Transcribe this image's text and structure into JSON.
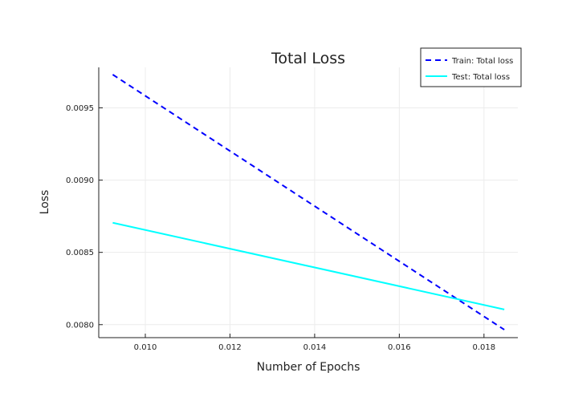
{
  "chart_data": {
    "type": "line",
    "title": "Total Loss",
    "xlabel": "Number of Epochs",
    "ylabel": "Loss",
    "xlim": [
      0.0089,
      0.0188
    ],
    "ylim": [
      0.00791,
      0.00978
    ],
    "xticks": [
      0.01,
      0.012,
      0.014,
      0.016,
      0.018
    ],
    "xtick_labels": [
      "0.010",
      "0.012",
      "0.014",
      "0.016",
      "0.018"
    ],
    "yticks": [
      0.008,
      0.0085,
      0.009,
      0.0095
    ],
    "ytick_labels": [
      "0.0080",
      "0.0085",
      "0.0090",
      "0.0095"
    ],
    "grid": true,
    "legend_position": "top-right",
    "series": [
      {
        "name": "Train: Total loss",
        "color": "#0000ff",
        "style": "dashed",
        "x": [
          0.00923,
          0.01848
        ],
        "y": [
          0.00973,
          0.007965
        ]
      },
      {
        "name": "Test: Total loss",
        "color": "#00ffff",
        "style": "solid",
        "x": [
          0.00923,
          0.01848
        ],
        "y": [
          0.008705,
          0.008105
        ]
      }
    ]
  }
}
